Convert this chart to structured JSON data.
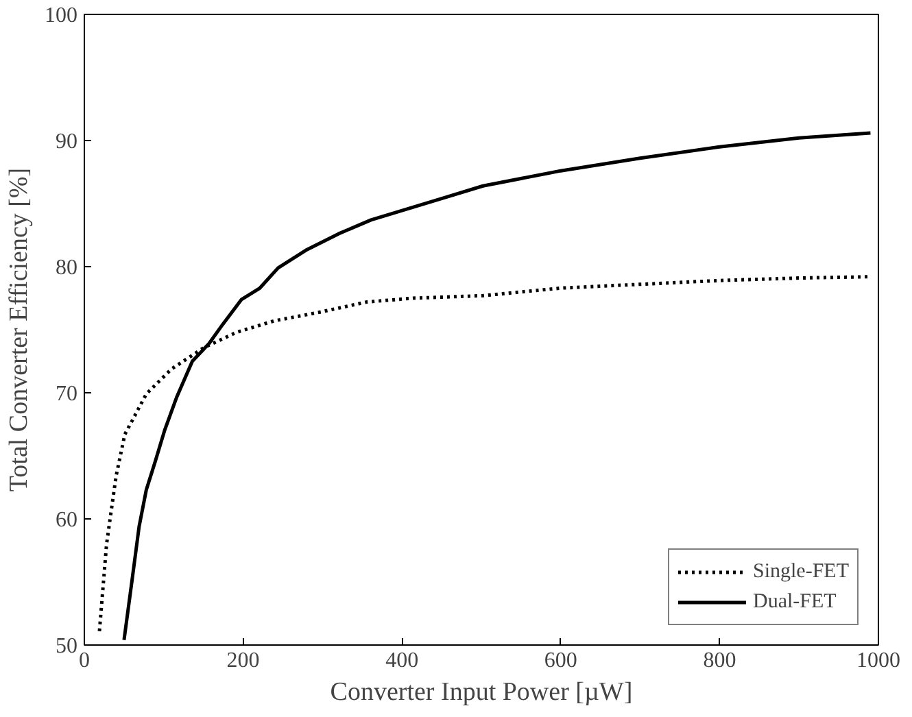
{
  "chart_data": {
    "type": "line",
    "xlabel": "Converter Input Power [µW]",
    "ylabel": "Total Converter Efficiency [%]",
    "xlim": [
      0,
      1000
    ],
    "ylim": [
      50,
      100
    ],
    "xticks": [
      0,
      200,
      400,
      600,
      800,
      1000
    ],
    "yticks": [
      50,
      60,
      70,
      80,
      90,
      100
    ],
    "legend": "bottom right",
    "series": [
      {
        "name": "Single-FET",
        "color": "#000000",
        "line_style": "dotted",
        "x": [
          19,
          28,
          40,
          51,
          78,
          110,
          151,
          192,
          239,
          297,
          356,
          414,
          502,
          600,
          700,
          800,
          900,
          990
        ],
        "values": [
          51.1,
          58,
          63.4,
          66.7,
          69.9,
          71.9,
          73.6,
          74.8,
          75.7,
          76.4,
          77.2,
          77.5,
          77.7,
          78.3,
          78.6,
          78.9,
          79.1,
          79.2
        ]
      },
      {
        "name": "Dual-FET",
        "color": "#000000",
        "line_style": "solid",
        "x": [
          50,
          60,
          69,
          78,
          89,
          101,
          116,
          136,
          157,
          174,
          198,
          221,
          244,
          279,
          320,
          361,
          408,
          455,
          502,
          600,
          700,
          800,
          900,
          990
        ],
        "values": [
          50.4,
          55.1,
          59.4,
          62.3,
          64.5,
          67,
          69.6,
          72.5,
          73.9,
          75.4,
          77.4,
          78.3,
          79.9,
          81.3,
          82.6,
          83.7,
          84.6,
          85.5,
          86.4,
          87.6,
          88.6,
          89.5,
          90.2,
          90.6
        ]
      }
    ]
  }
}
